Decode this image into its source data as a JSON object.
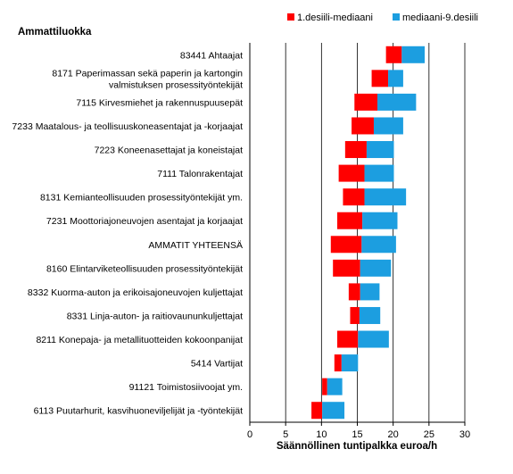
{
  "chart_data": {
    "type": "bar",
    "orientation": "horizontal",
    "stacked": "floating",
    "category_header": "Ammattiluokka",
    "xlabel": "Säännöllinen tuntipalkka euroa/h",
    "xlim": [
      0,
      30
    ],
    "xticks": [
      0,
      5,
      10,
      15,
      20,
      25,
      30
    ],
    "grid": true,
    "legend_position": "top-right",
    "categories": [
      [
        "83441 Ahtaajat"
      ],
      [
        "8171 Paperimassan sekä paperin ja kartongin",
        "valmistuksen prosessityöntekijät"
      ],
      [
        "7115 Kirvesmiehet ja rakennuspuusepät"
      ],
      [
        "7233 Maatalous- ja teollisuuskoneasentajat ja -korjaajat"
      ],
      [
        "7223 Koneenasettajat ja koneistajat"
      ],
      [
        "7111 Talonrakentajat"
      ],
      [
        "8131 Kemianteollisuuden prosessityöntekijät ym."
      ],
      [
        "7231 Moottoriajoneuvojen asentajat ja korjaajat"
      ],
      [
        "AMMATIT YHTEENSÄ"
      ],
      [
        "8160 Elintarviketeollisuuden prosessityöntekijät"
      ],
      [
        "8332 Kuorma-auton ja erikoisajoneuvojen kuljettajat"
      ],
      [
        "8331 Linja-auton- ja raitiovaununkuljettajat"
      ],
      [
        "8211 Konepaja- ja metallituotteiden kokoonpanijat"
      ],
      [
        "5414 Vartijat"
      ],
      [
        "91121 Toimistosiivoojat ym."
      ],
      [
        "6113 Puutarhurit, kasvihuoneviljelijät ja -työntekijät"
      ]
    ],
    "series": [
      {
        "name": "1.desiili-mediaani",
        "color": "#ff0000",
        "ranges": [
          [
            19.0,
            21.2
          ],
          [
            17.0,
            19.3
          ],
          [
            14.6,
            17.8
          ],
          [
            14.2,
            17.3
          ],
          [
            13.3,
            16.3
          ],
          [
            12.4,
            16.0
          ],
          [
            13.0,
            16.0
          ],
          [
            12.2,
            15.7
          ],
          [
            11.3,
            15.6
          ],
          [
            11.6,
            15.4
          ],
          [
            13.8,
            15.4
          ],
          [
            14.0,
            15.3
          ],
          [
            12.2,
            15.1
          ],
          [
            11.8,
            12.8
          ],
          [
            10.1,
            10.8
          ],
          [
            8.6,
            10.1
          ]
        ]
      },
      {
        "name": "mediaani-9.desiili",
        "color": "#1c9ee0",
        "ranges": [
          [
            21.2,
            24.4
          ],
          [
            19.3,
            21.4
          ],
          [
            17.8,
            23.2
          ],
          [
            17.3,
            21.4
          ],
          [
            16.3,
            20.1
          ],
          [
            16.0,
            20.1
          ],
          [
            16.0,
            21.8
          ],
          [
            15.7,
            20.6
          ],
          [
            15.6,
            20.4
          ],
          [
            15.4,
            19.7
          ],
          [
            15.4,
            18.1
          ],
          [
            15.3,
            18.2
          ],
          [
            15.1,
            19.4
          ],
          [
            12.8,
            15.1
          ],
          [
            10.8,
            12.9
          ],
          [
            10.1,
            13.2
          ]
        ]
      }
    ]
  }
}
